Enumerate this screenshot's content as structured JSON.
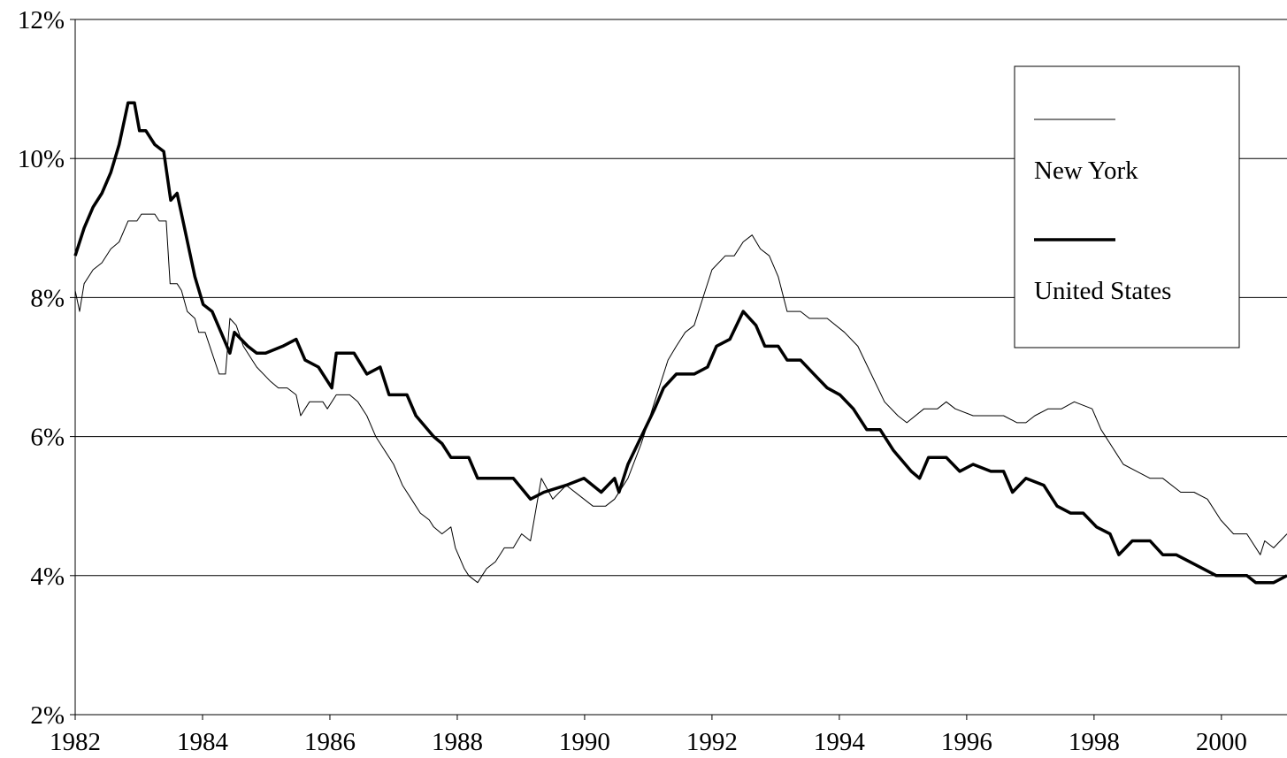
{
  "chart_data": {
    "type": "line",
    "xlim": [
      1982,
      2001.03
    ],
    "xticks": [
      1982,
      1984,
      1986,
      1988,
      1990,
      1992,
      1994,
      1996,
      1998,
      2000
    ],
    "ylim": [
      2,
      12
    ],
    "yticks": [
      {
        "value": 2,
        "label": "2%"
      },
      {
        "value": 4,
        "label": "4%"
      },
      {
        "value": 6,
        "label": "6%"
      },
      {
        "value": 8,
        "label": "8%"
      },
      {
        "value": 10,
        "label": "10%"
      },
      {
        "value": 12,
        "label": "12%"
      }
    ],
    "grid": true,
    "legend": "top-right",
    "series": [
      {
        "name": "New York",
        "color": "#000000",
        "width": 1,
        "x": [
          1982.0,
          1982.07,
          1982.14,
          1982.28,
          1982.42,
          1982.56,
          1982.69,
          1982.83,
          1982.97,
          1983.04,
          1983.25,
          1983.32,
          1983.43,
          1983.49,
          1983.6,
          1983.67,
          1983.76,
          1983.88,
          1983.94,
          1984.04,
          1984.15,
          1984.26,
          1984.36,
          1984.43,
          1984.53,
          1984.64,
          1984.85,
          1985.06,
          1985.19,
          1985.33,
          1985.47,
          1985.54,
          1985.68,
          1985.89,
          1985.96,
          1986.1,
          1986.31,
          1986.44,
          1986.58,
          1986.72,
          1986.86,
          1987.0,
          1987.14,
          1987.28,
          1987.42,
          1987.56,
          1987.63,
          1987.76,
          1987.9,
          1987.97,
          1988.11,
          1988.18,
          1988.32,
          1988.46,
          1988.6,
          1988.74,
          1988.88,
          1989.01,
          1989.15,
          1989.32,
          1989.5,
          1989.71,
          1989.99,
          1990.13,
          1990.33,
          1990.47,
          1990.68,
          1990.89,
          1991.1,
          1991.31,
          1991.44,
          1991.58,
          1991.72,
          1991.86,
          1992.0,
          1992.21,
          1992.35,
          1992.49,
          1992.63,
          1992.76,
          1992.9,
          1993.04,
          1993.18,
          1993.39,
          1993.53,
          1993.81,
          1994.08,
          1994.29,
          1994.5,
          1994.71,
          1994.92,
          1995.06,
          1995.33,
          1995.54,
          1995.68,
          1995.82,
          1996.1,
          1996.38,
          1996.58,
          1996.79,
          1996.93,
          1997.07,
          1997.28,
          1997.49,
          1997.69,
          1997.97,
          1998.11,
          1998.32,
          1998.46,
          1998.67,
          1998.88,
          1999.08,
          1999.36,
          1999.57,
          1999.78,
          1999.99,
          2000.19,
          2000.4,
          2000.61,
          2000.68,
          2000.82,
          2001.03
        ],
        "values": [
          8.1,
          7.8,
          8.2,
          8.4,
          8.5,
          8.7,
          8.8,
          9.1,
          9.1,
          9.2,
          9.2,
          9.1,
          9.1,
          8.2,
          8.2,
          8.1,
          7.8,
          7.7,
          7.5,
          7.5,
          7.2,
          6.9,
          6.9,
          7.7,
          7.6,
          7.3,
          7.0,
          6.8,
          6.7,
          6.7,
          6.6,
          6.3,
          6.5,
          6.5,
          6.4,
          6.6,
          6.6,
          6.5,
          6.3,
          6.0,
          5.8,
          5.6,
          5.3,
          5.1,
          4.9,
          4.8,
          4.7,
          4.6,
          4.7,
          4.4,
          4.1,
          4.0,
          3.9,
          4.1,
          4.2,
          4.4,
          4.4,
          4.6,
          4.5,
          5.4,
          5.1,
          5.3,
          5.1,
          5.0,
          5.0,
          5.1,
          5.4,
          5.9,
          6.5,
          7.1,
          7.3,
          7.5,
          7.6,
          8.0,
          8.4,
          8.6,
          8.6,
          8.8,
          8.9,
          8.7,
          8.6,
          8.3,
          7.8,
          7.8,
          7.7,
          7.7,
          7.5,
          7.3,
          6.9,
          6.5,
          6.3,
          6.2,
          6.4,
          6.4,
          6.5,
          6.4,
          6.3,
          6.3,
          6.3,
          6.2,
          6.2,
          6.3,
          6.4,
          6.4,
          6.5,
          6.4,
          6.1,
          5.8,
          5.6,
          5.5,
          5.4,
          5.4,
          5.2,
          5.2,
          5.1,
          4.8,
          4.6,
          4.6,
          4.3,
          4.5,
          4.4,
          4.6
        ]
      },
      {
        "name": "United States",
        "color": "#000000",
        "width": 3.5,
        "x": [
          1982.0,
          1982.14,
          1982.28,
          1982.42,
          1982.56,
          1982.69,
          1982.83,
          1982.93,
          1983.01,
          1983.11,
          1983.25,
          1983.39,
          1983.5,
          1983.6,
          1983.74,
          1983.88,
          1984.01,
          1984.15,
          1984.29,
          1984.43,
          1984.5,
          1984.71,
          1984.85,
          1984.99,
          1985.26,
          1985.47,
          1985.61,
          1985.82,
          1986.03,
          1986.1,
          1986.38,
          1986.58,
          1986.79,
          1986.93,
          1987.21,
          1987.35,
          1987.63,
          1987.76,
          1987.9,
          1988.18,
          1988.32,
          1988.6,
          1988.88,
          1989.15,
          1989.36,
          1989.71,
          1989.99,
          1990.26,
          1990.47,
          1990.54,
          1990.68,
          1990.89,
          1991.1,
          1991.24,
          1991.44,
          1991.72,
          1991.93,
          1992.07,
          1992.28,
          1992.49,
          1992.69,
          1992.83,
          1993.04,
          1993.18,
          1993.39,
          1993.6,
          1993.81,
          1994.01,
          1994.22,
          1994.43,
          1994.64,
          1994.85,
          1995.13,
          1995.26,
          1995.4,
          1995.68,
          1995.89,
          1996.1,
          1996.38,
          1996.58,
          1996.72,
          1996.93,
          1997.21,
          1997.42,
          1997.63,
          1997.83,
          1998.04,
          1998.25,
          1998.39,
          1998.6,
          1998.88,
          1999.08,
          1999.29,
          1999.5,
          1999.71,
          1999.92,
          2000.13,
          2000.4,
          2000.54,
          2000.82,
          2001.03
        ],
        "values": [
          8.6,
          9.0,
          9.3,
          9.5,
          9.8,
          10.2,
          10.8,
          10.8,
          10.4,
          10.4,
          10.2,
          10.1,
          9.4,
          9.5,
          8.9,
          8.3,
          7.9,
          7.8,
          7.5,
          7.2,
          7.5,
          7.3,
          7.2,
          7.2,
          7.3,
          7.4,
          7.1,
          7.0,
          6.7,
          7.2,
          7.2,
          6.9,
          7.0,
          6.6,
          6.6,
          6.3,
          6.0,
          5.9,
          5.7,
          5.7,
          5.4,
          5.4,
          5.4,
          5.1,
          5.2,
          5.3,
          5.4,
          5.2,
          5.4,
          5.2,
          5.6,
          6.0,
          6.4,
          6.7,
          6.9,
          6.9,
          7.0,
          7.3,
          7.4,
          7.8,
          7.6,
          7.3,
          7.3,
          7.1,
          7.1,
          6.9,
          6.7,
          6.6,
          6.4,
          6.1,
          6.1,
          5.8,
          5.5,
          5.4,
          5.7,
          5.7,
          5.5,
          5.6,
          5.5,
          5.5,
          5.2,
          5.4,
          5.3,
          5.0,
          4.9,
          4.9,
          4.7,
          4.6,
          4.3,
          4.5,
          4.5,
          4.3,
          4.3,
          4.2,
          4.1,
          4.0,
          4.0,
          4.0,
          3.9,
          3.9,
          4.0
        ]
      }
    ]
  }
}
